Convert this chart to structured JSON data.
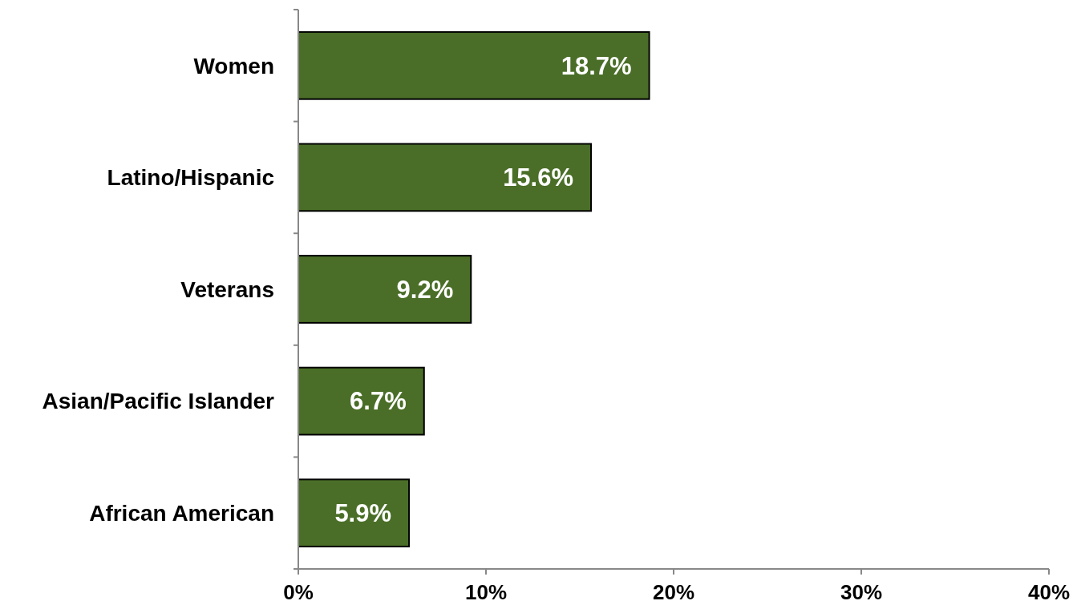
{
  "chart_data": {
    "type": "bar",
    "orientation": "horizontal",
    "categories": [
      "Women",
      "Latino/Hispanic",
      "Veterans",
      "Asian/Pacific Islander",
      "African American"
    ],
    "values": [
      18.7,
      15.6,
      9.2,
      6.7,
      5.9
    ],
    "value_labels": [
      "18.7%",
      "15.6%",
      "9.2%",
      "6.7%",
      "5.9%"
    ],
    "color": "#4a6e27",
    "xlim": [
      0,
      40
    ],
    "xticks": [
      {
        "value": 0,
        "label": "0%"
      },
      {
        "value": 10,
        "label": "10%"
      },
      {
        "value": 20,
        "label": "20%"
      },
      {
        "value": 30,
        "label": "30%"
      },
      {
        "value": 40,
        "label": "40%"
      }
    ],
    "grid": false
  }
}
